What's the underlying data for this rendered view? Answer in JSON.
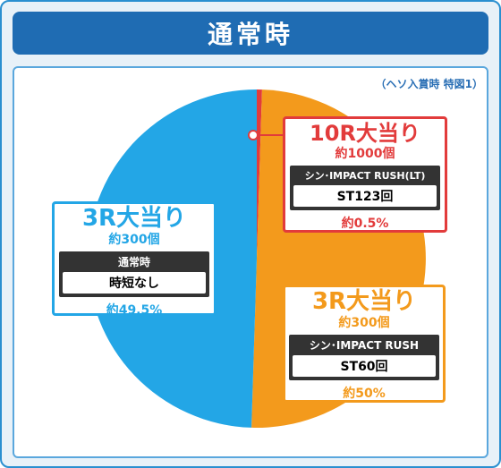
{
  "header": {
    "title": "通常時"
  },
  "note": "（ヘソ入賞時 特図1）",
  "chart_data": {
    "type": "pie",
    "title": "通常時",
    "slices": [
      {
        "name": "10R大当り",
        "value": 0.5,
        "color": "#e23b3b"
      },
      {
        "name": "3R大当り (シン・IMPACT RUSH)",
        "value": 50,
        "color": "#f39a1c"
      },
      {
        "name": "3R大当り (時短なし)",
        "value": 49.5,
        "color": "#23a6e6"
      }
    ]
  },
  "callouts": {
    "red": {
      "title": "10R大当り",
      "count": "約1000個",
      "mode": "シン･IMPACT RUSH(LT)",
      "result": "ST123回",
      "pct": "約0.5%"
    },
    "blue": {
      "title": "3R大当り",
      "count": "約300個",
      "mode": "通常時",
      "result": "時短なし",
      "pct": "約49.5%"
    },
    "orange": {
      "title": "3R大当り",
      "count": "約300個",
      "mode": "シン･IMPACT RUSH",
      "result": "ST60回",
      "pct": "約50%"
    }
  }
}
